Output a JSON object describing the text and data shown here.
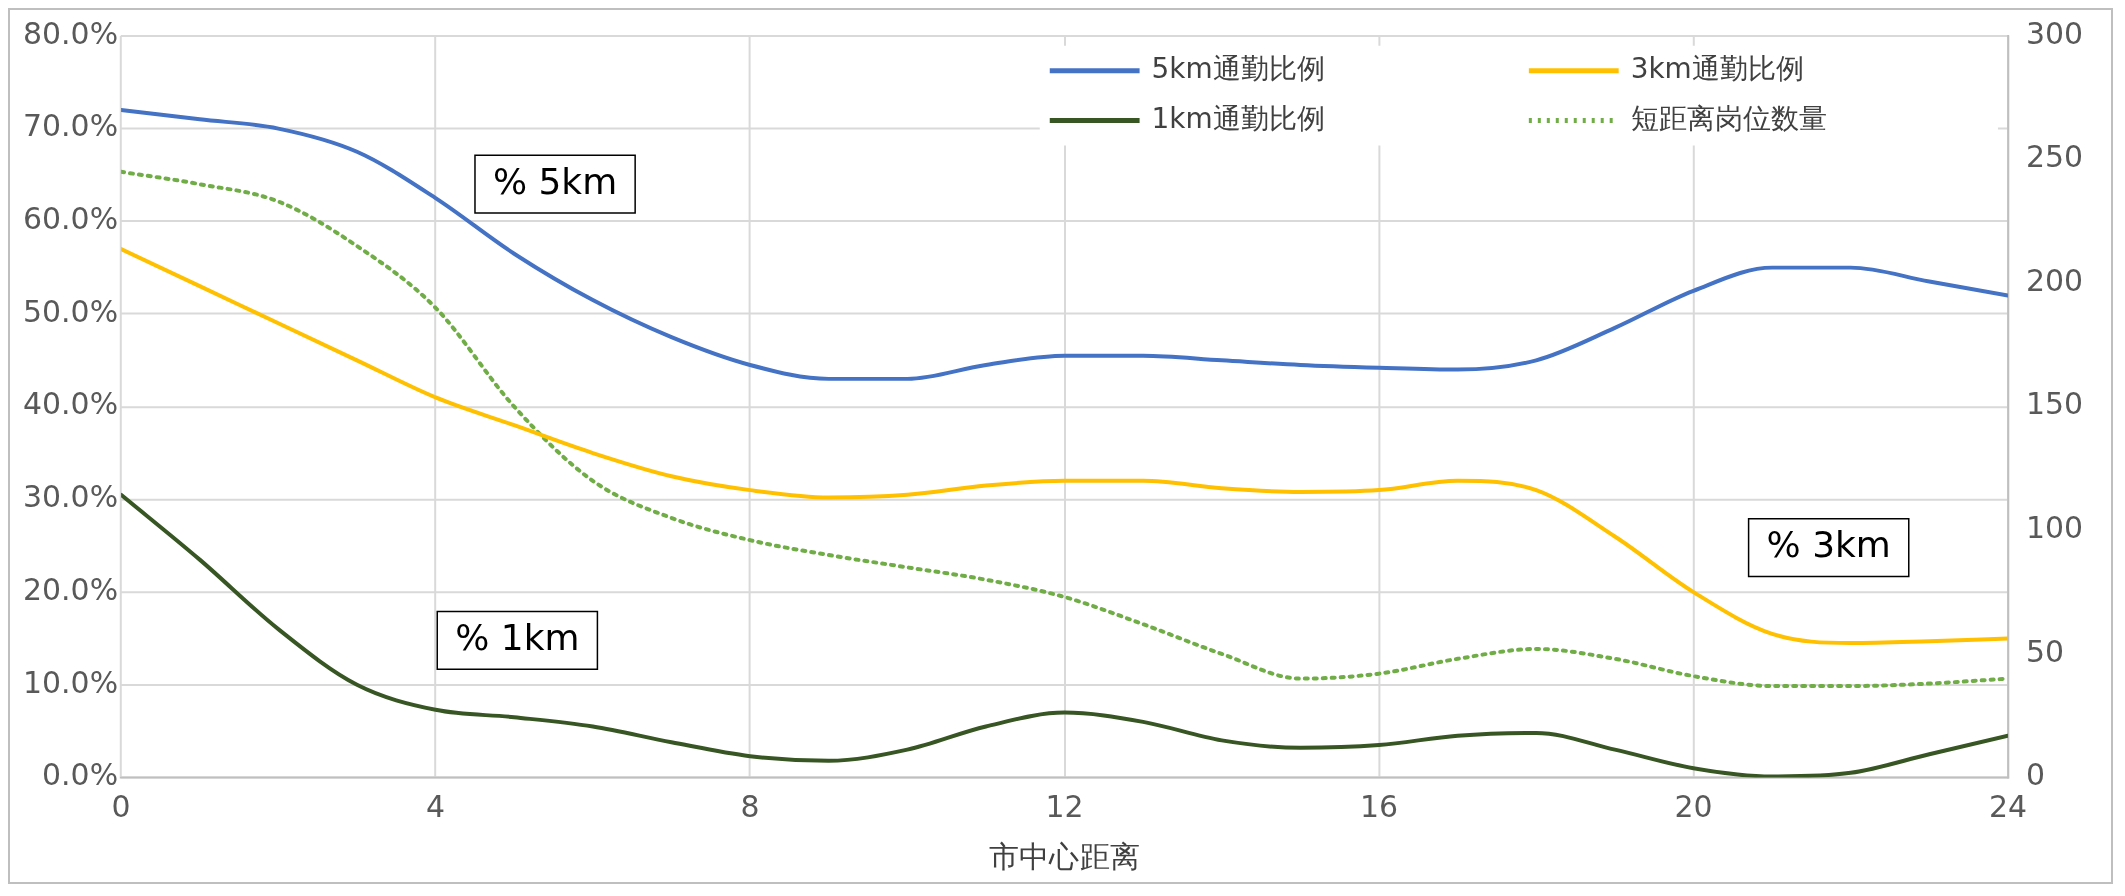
{
  "chart_data": {
    "type": "line",
    "xlabel": "市中心距离",
    "x": [
      0,
      1,
      2,
      3,
      4,
      5,
      6,
      7,
      8,
      9,
      10,
      11,
      12,
      13,
      14,
      15,
      16,
      17,
      18,
      19,
      20,
      21,
      22,
      23,
      24
    ],
    "series": [
      {
        "name": "5km通勤比例",
        "color": "#4472c4",
        "values": [
          72,
          71,
          70,
          67.5,
          62.5,
          56.5,
          51.5,
          47.5,
          44.5,
          43,
          43,
          44.5,
          45.5,
          45.5,
          45,
          44.5,
          44.2,
          44,
          45,
          48.5,
          52.5,
          55,
          55,
          53.5,
          52
        ]
      },
      {
        "name": "1km通勤比例",
        "color": "#375623",
        "values": [
          30.5,
          23.5,
          16,
          10,
          7.3,
          6.5,
          5.5,
          3.8,
          2.3,
          1.8,
          3,
          5.5,
          7,
          6,
          4,
          3.2,
          3.5,
          4.5,
          4.8,
          3,
          1,
          0.1,
          0.5,
          2.5,
          4.5
        ]
      },
      {
        "name": "3km通勤比例",
        "color": "#ffc000",
        "values": [
          57,
          53,
          49,
          45,
          41,
          38,
          35,
          32.5,
          31,
          30.2,
          30.5,
          31.5,
          32,
          32,
          31.2,
          30.8,
          31,
          32,
          31,
          26,
          20,
          15.5,
          14.5,
          14.7,
          15
        ]
      },
      {
        "name": "短距离岗位数量",
        "color": "#70ad47",
        "axis": "y2",
        "line_style": "dotted",
        "values": [
          245,
          240,
          233,
          215,
          190,
          150,
          120,
          105,
          96,
          90,
          85,
          80,
          73,
          62,
          50,
          40,
          42,
          48,
          52,
          48,
          41,
          37,
          37,
          38,
          40
        ]
      }
    ],
    "xlim": [
      0,
      24
    ],
    "xticks": [
      0,
      4,
      8,
      12,
      16,
      20,
      24
    ],
    "ylim": [
      0,
      80
    ],
    "yticks": [
      {
        "value": 0,
        "label": "0.0%"
      },
      {
        "value": 10,
        "label": "10.0%"
      },
      {
        "value": 20,
        "label": "20.0%"
      },
      {
        "value": 30,
        "label": "30.0%"
      },
      {
        "value": 40,
        "label": "40.0%"
      },
      {
        "value": 50,
        "label": "50.0%"
      },
      {
        "value": 60,
        "label": "60.0%"
      },
      {
        "value": 70,
        "label": "70.0%"
      },
      {
        "value": 80,
        "label": "80.0%"
      }
    ],
    "y2lim": [
      0,
      300
    ],
    "y2ticks": [
      0,
      50,
      100,
      150,
      200,
      250,
      300
    ],
    "grid": true,
    "legend": "top right",
    "marker": "none",
    "line_style": "solid",
    "annotations": [
      "% 5km",
      "% 1km",
      "% 3km"
    ]
  }
}
